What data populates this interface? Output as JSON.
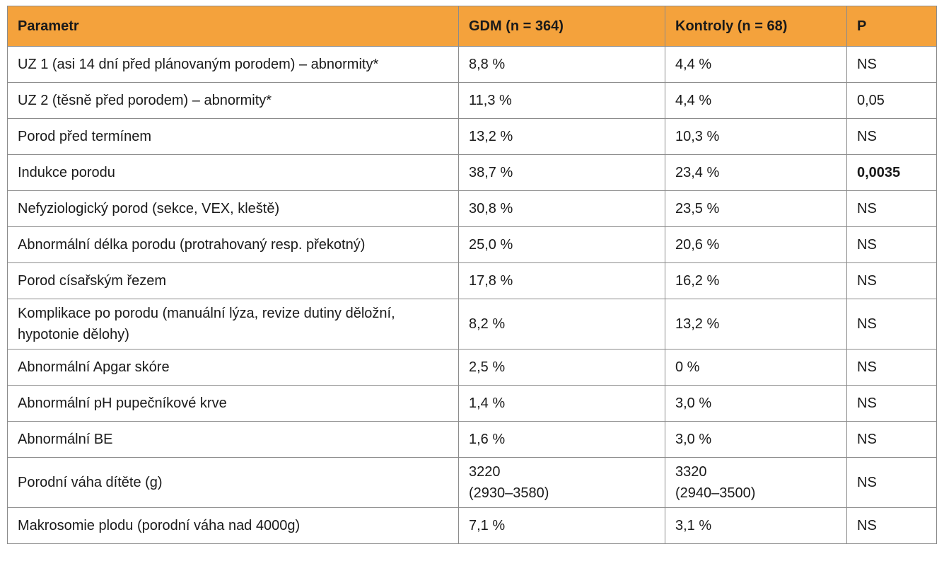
{
  "colors": {
    "header_bg": "#f4a23c",
    "border": "#8c8c8c"
  },
  "table": {
    "headers": [
      "Parametr",
      "GDM (n = 364)",
      "Kontroly (n = 68)",
      "P"
    ],
    "rows": [
      {
        "param": "UZ 1 (asi 14 dní před plánovaným porodem) – abnormity*",
        "gdm": "8,8 %",
        "ctrl": "4,4 %",
        "p": "NS"
      },
      {
        "param": "UZ 2 (těsně před porodem) – abnormity*",
        "gdm": "11,3 %",
        "ctrl": "4,4 %",
        "p": "0,05"
      },
      {
        "param": "Porod před termínem",
        "gdm": "13,2 %",
        "ctrl": "10,3 %",
        "p": "NS"
      },
      {
        "param": "Indukce porodu",
        "gdm": "38,7 %",
        "ctrl": "23,4 %",
        "p": "0,0035"
      },
      {
        "param": "Nefyziologický porod (sekce, VEX, kleště)",
        "gdm": "30,8 %",
        "ctrl": "23,5 %",
        "p": "NS"
      },
      {
        "param": "Abnormální délka porodu (protrahovaný resp. překotný)",
        "gdm": "25,0 %",
        "ctrl": "20,6 %",
        "p": "NS"
      },
      {
        "param": "Porod císařským řezem",
        "gdm": "17,8 %",
        "ctrl": "16,2 %",
        "p": "NS"
      },
      {
        "param_line1": "Komplikace po porodu (manuální lýza, revize dutiny děložní,",
        "param_line2": "hypotonie dělohy)",
        "gdm": "8,2 %",
        "ctrl": "13,2 %",
        "p": "NS"
      },
      {
        "param": "Abnormální Apgar skóre",
        "gdm": "2,5 %",
        "ctrl": "0 %",
        "p": "NS"
      },
      {
        "param": "Abnormální pH pupečníkové krve",
        "gdm": "1,4 %",
        "ctrl": "3,0 %",
        "p": "NS"
      },
      {
        "param": "Abnormální BE",
        "gdm": "1,6 %",
        "ctrl": "3,0 %",
        "p": "NS"
      },
      {
        "param": "Porodní váha dítěte (g)",
        "gdm_line1": "3220",
        "gdm_line2": "(2930–3580)",
        "ctrl_line1": "3320",
        "ctrl_line2": "(2940–3500)",
        "p": "NS"
      },
      {
        "param": "Makrosomie plodu (porodní váha nad 4000g)",
        "gdm": "7,1 %",
        "ctrl": "3,1 %",
        "p": "NS"
      }
    ]
  }
}
